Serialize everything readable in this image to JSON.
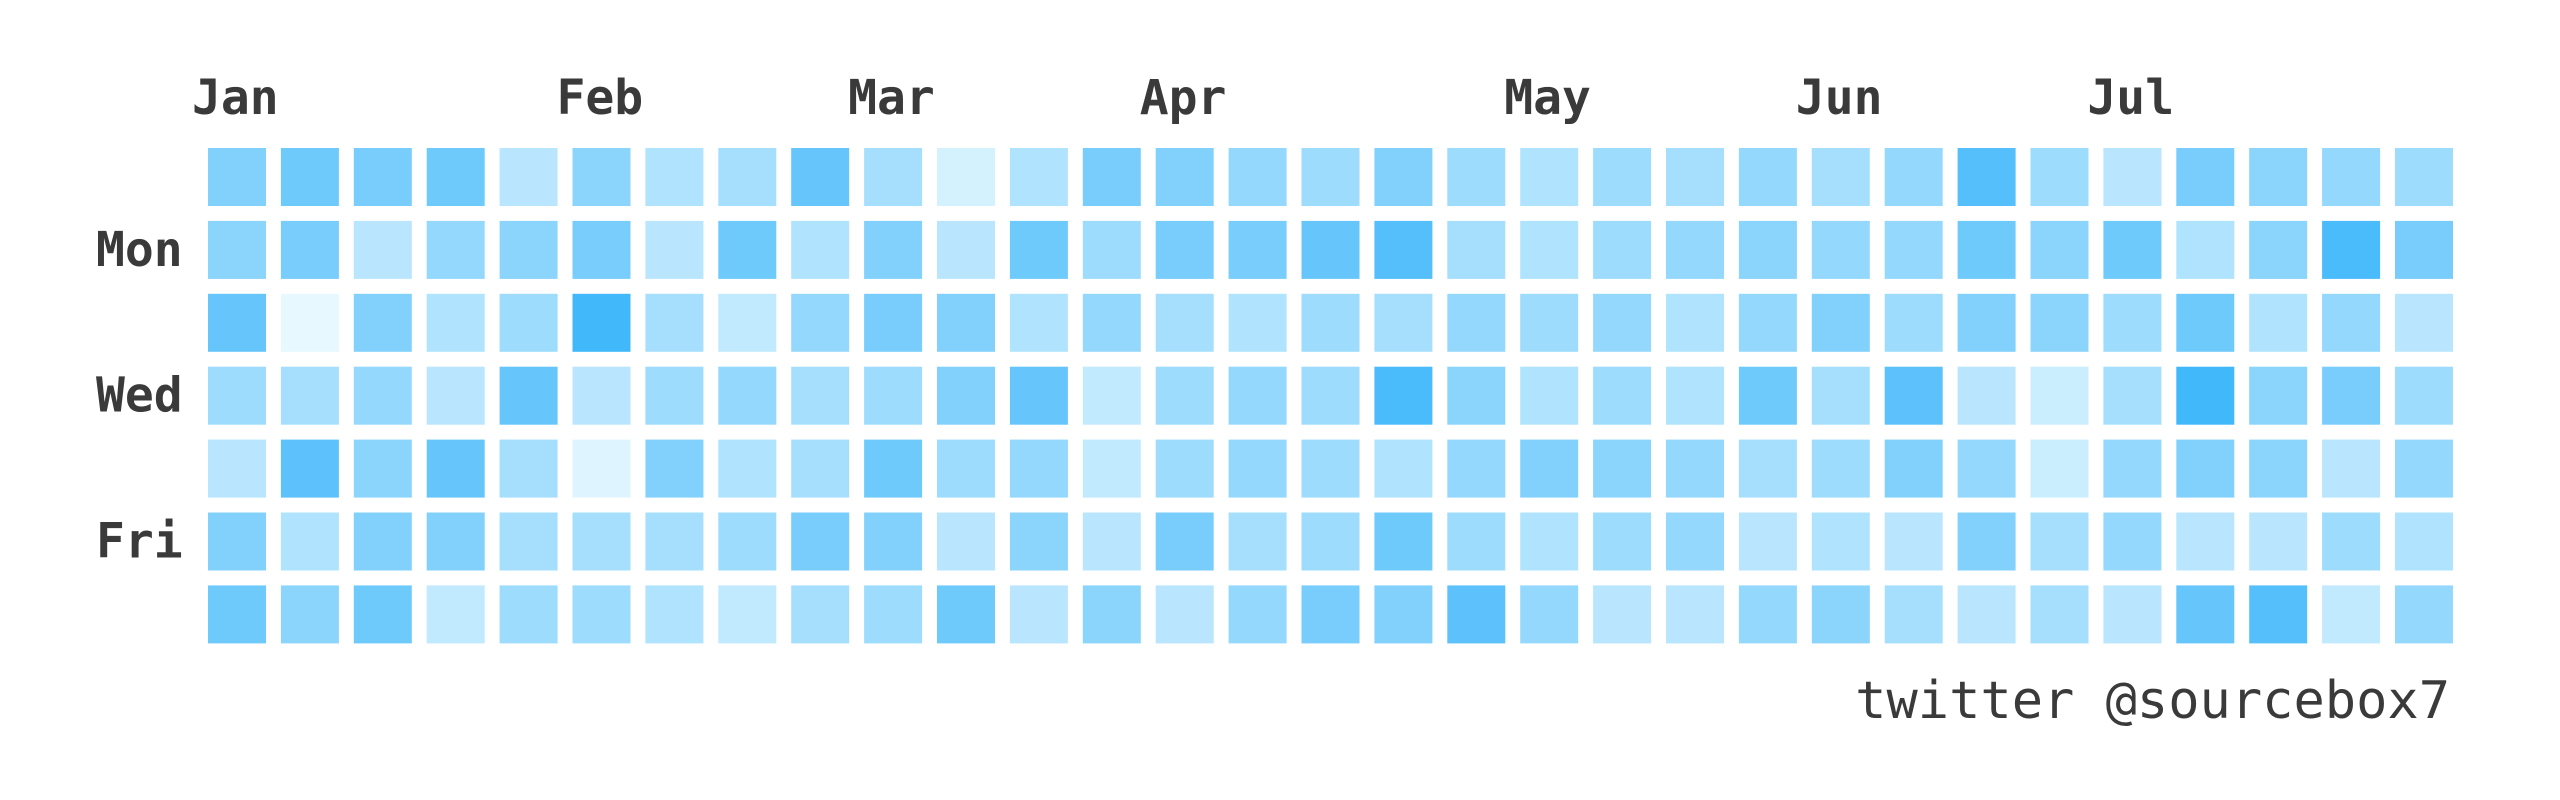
{
  "chart_data": {
    "type": "heatmap",
    "title": "",
    "months": [
      {
        "label": "Jan",
        "week": 0
      },
      {
        "label": "Feb",
        "week": 5
      },
      {
        "label": "Mar",
        "week": 9
      },
      {
        "label": "Apr",
        "week": 13
      },
      {
        "label": "May",
        "week": 18
      },
      {
        "label": "Jun",
        "week": 22
      },
      {
        "label": "Jul",
        "week": 26
      }
    ],
    "day_labels": [
      {
        "label": "Mon",
        "row": 1
      },
      {
        "label": "Wed",
        "row": 3
      },
      {
        "label": "Fri",
        "row": 5
      }
    ],
    "rows": 7,
    "columns": 31,
    "scale": {
      "min": 0,
      "max": 1,
      "low_color": "#f0fcff",
      "high_color": "#38b4fa"
    },
    "values": [
      [
        0.6,
        0.7,
        0.65,
        0.7,
        0.3,
        0.55,
        0.35,
        0.4,
        0.75,
        0.4,
        0.15,
        0.35,
        0.65,
        0.6,
        0.5,
        0.45,
        0.6,
        0.45,
        0.35,
        0.45,
        0.4,
        0.5,
        0.4,
        0.5,
        0.85,
        0.45,
        0.3,
        0.65,
        0.55,
        0.5,
        0.45
      ],
      [
        0.55,
        0.65,
        0.3,
        0.5,
        0.55,
        0.65,
        0.3,
        0.7,
        0.35,
        0.6,
        0.3,
        0.7,
        0.45,
        0.65,
        0.65,
        0.75,
        0.85,
        0.4,
        0.35,
        0.45,
        0.5,
        0.55,
        0.5,
        0.5,
        0.7,
        0.55,
        0.7,
        0.35,
        0.55,
        0.9,
        0.65
      ],
      [
        0.75,
        0.05,
        0.6,
        0.35,
        0.45,
        0.95,
        0.4,
        0.25,
        0.5,
        0.65,
        0.6,
        0.35,
        0.5,
        0.4,
        0.35,
        0.45,
        0.4,
        0.5,
        0.45,
        0.5,
        0.35,
        0.5,
        0.6,
        0.45,
        0.6,
        0.55,
        0.45,
        0.7,
        0.35,
        0.5,
        0.3
      ],
      [
        0.45,
        0.4,
        0.5,
        0.3,
        0.75,
        0.3,
        0.45,
        0.5,
        0.4,
        0.45,
        0.6,
        0.75,
        0.25,
        0.45,
        0.5,
        0.45,
        0.9,
        0.55,
        0.35,
        0.45,
        0.35,
        0.7,
        0.4,
        0.8,
        0.3,
        0.2,
        0.4,
        0.95,
        0.55,
        0.65,
        0.45
      ],
      [
        0.3,
        0.8,
        0.55,
        0.75,
        0.4,
        0.1,
        0.6,
        0.35,
        0.4,
        0.7,
        0.45,
        0.5,
        0.25,
        0.45,
        0.5,
        0.45,
        0.35,
        0.5,
        0.6,
        0.55,
        0.5,
        0.4,
        0.45,
        0.6,
        0.5,
        0.2,
        0.5,
        0.6,
        0.55,
        0.3,
        0.5
      ],
      [
        0.6,
        0.35,
        0.6,
        0.6,
        0.4,
        0.4,
        0.4,
        0.45,
        0.65,
        0.6,
        0.3,
        0.55,
        0.3,
        0.65,
        0.4,
        0.45,
        0.7,
        0.45,
        0.35,
        0.45,
        0.5,
        0.3,
        0.35,
        0.3,
        0.6,
        0.4,
        0.5,
        0.3,
        0.3,
        0.45,
        0.35
      ],
      [
        0.7,
        0.55,
        0.7,
        0.25,
        0.45,
        0.45,
        0.35,
        0.25,
        0.4,
        0.45,
        0.7,
        0.3,
        0.55,
        0.3,
        0.5,
        0.65,
        0.6,
        0.8,
        0.5,
        0.3,
        0.3,
        0.5,
        0.55,
        0.4,
        0.3,
        0.4,
        0.3,
        0.75,
        0.85,
        0.25,
        0.5
      ]
    ]
  },
  "credit": "twitter @sourcebox7"
}
